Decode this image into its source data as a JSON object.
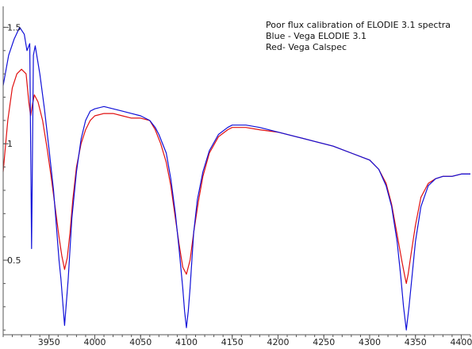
{
  "chart_data": {
    "type": "line",
    "title": "Poor flux calibration of ELODIE 3.1 spectra",
    "annotations": [
      "Blue - Vega  ELODIE 3.1",
      "Red-  Vega  Calspec"
    ],
    "xlim": [
      3900,
      4410
    ],
    "ylim": [
      0.18,
      1.59
    ],
    "xticks": [
      3950,
      4000,
      4050,
      4100,
      4150,
      4200,
      4250,
      4300,
      4350,
      4400
    ],
    "xtick_labels": [
      "3950",
      "4000",
      "4050",
      "4100",
      "4150",
      "4200",
      "4250",
      "4300",
      "4350",
      "4400"
    ],
    "yticks": [
      0.5,
      1,
      1.5
    ],
    "ytick_labels": [
      "0.5",
      "1",
      "1.5"
    ],
    "grid": false,
    "colors": {
      "elodie": "#1010d8",
      "calspec": "#e01010",
      "axis": "#555555"
    },
    "series": [
      {
        "name": "Vega  ELODIE 3.1",
        "color": "#1010d8",
        "x": [
          3900,
          3906,
          3912,
          3918,
          3923,
          3926,
          3929,
          3931,
          3933,
          3935,
          3940,
          3945,
          3950,
          3955,
          3958,
          3961,
          3963,
          3965,
          3967,
          3969,
          3971,
          3973,
          3975,
          3980,
          3985,
          3990,
          3995,
          4000,
          4010,
          4020,
          4030,
          4040,
          4050,
          4060,
          4066,
          4070,
          4078,
          4083,
          4088,
          4092,
          4096,
          4098,
          4100,
          4102,
          4104,
          4106,
          4108,
          4112,
          4118,
          4125,
          4135,
          4145,
          4150,
          4165,
          4180,
          4200,
          4220,
          4240,
          4260,
          4280,
          4300,
          4310,
          4318,
          4324,
          4330,
          4334,
          4337,
          4340,
          4343,
          4346,
          4350,
          4356,
          4364,
          4372,
          4380,
          4390,
          4400,
          4410
        ],
        "y": [
          1.25,
          1.38,
          1.45,
          1.5,
          1.47,
          1.4,
          1.43,
          0.55,
          1.38,
          1.42,
          1.3,
          1.15,
          0.98,
          0.8,
          0.65,
          0.5,
          0.42,
          0.32,
          0.22,
          0.32,
          0.42,
          0.55,
          0.68,
          0.88,
          1.02,
          1.1,
          1.14,
          1.15,
          1.16,
          1.15,
          1.14,
          1.13,
          1.12,
          1.1,
          1.07,
          1.04,
          0.96,
          0.85,
          0.7,
          0.55,
          0.38,
          0.28,
          0.21,
          0.28,
          0.38,
          0.5,
          0.62,
          0.76,
          0.88,
          0.97,
          1.04,
          1.07,
          1.08,
          1.08,
          1.07,
          1.05,
          1.03,
          1.01,
          0.99,
          0.96,
          0.93,
          0.89,
          0.82,
          0.73,
          0.58,
          0.43,
          0.3,
          0.2,
          0.3,
          0.42,
          0.58,
          0.73,
          0.82,
          0.85,
          0.86,
          0.86,
          0.87,
          0.87
        ]
      },
      {
        "name": "Vega  Calspec",
        "color": "#e01010",
        "x": [
          3900,
          3905,
          3910,
          3915,
          3920,
          3925,
          3928,
          3930,
          3932,
          3934,
          3938,
          3943,
          3948,
          3953,
          3957,
          3961,
          3964,
          3967,
          3970,
          3973,
          3976,
          3980,
          3985,
          3990,
          3995,
          4000,
          4010,
          4020,
          4030,
          4040,
          4050,
          4060,
          4066,
          4072,
          4078,
          4083,
          4088,
          4092,
          4096,
          4100,
          4104,
          4108,
          4113,
          4118,
          4125,
          4135,
          4145,
          4150,
          4165,
          4180,
          4200,
          4220,
          4240,
          4260,
          4280,
          4300,
          4310,
          4318,
          4324,
          4330,
          4335,
          4338,
          4340,
          4342,
          4345,
          4350,
          4356,
          4364,
          4372,
          4380,
          4390,
          4400,
          4410
        ],
        "y": [
          0.88,
          1.1,
          1.24,
          1.3,
          1.32,
          1.3,
          1.18,
          1.12,
          1.17,
          1.21,
          1.18,
          1.1,
          0.98,
          0.84,
          0.72,
          0.6,
          0.52,
          0.46,
          0.51,
          0.62,
          0.76,
          0.9,
          1.0,
          1.06,
          1.1,
          1.12,
          1.13,
          1.13,
          1.12,
          1.11,
          1.11,
          1.1,
          1.06,
          1.0,
          0.92,
          0.82,
          0.68,
          0.57,
          0.47,
          0.44,
          0.5,
          0.62,
          0.75,
          0.86,
          0.96,
          1.03,
          1.06,
          1.07,
          1.07,
          1.06,
          1.05,
          1.03,
          1.01,
          0.99,
          0.96,
          0.93,
          0.89,
          0.83,
          0.74,
          0.61,
          0.5,
          0.44,
          0.4,
          0.44,
          0.52,
          0.65,
          0.77,
          0.83,
          0.85,
          0.86,
          0.86,
          0.87,
          0.87
        ]
      }
    ]
  }
}
